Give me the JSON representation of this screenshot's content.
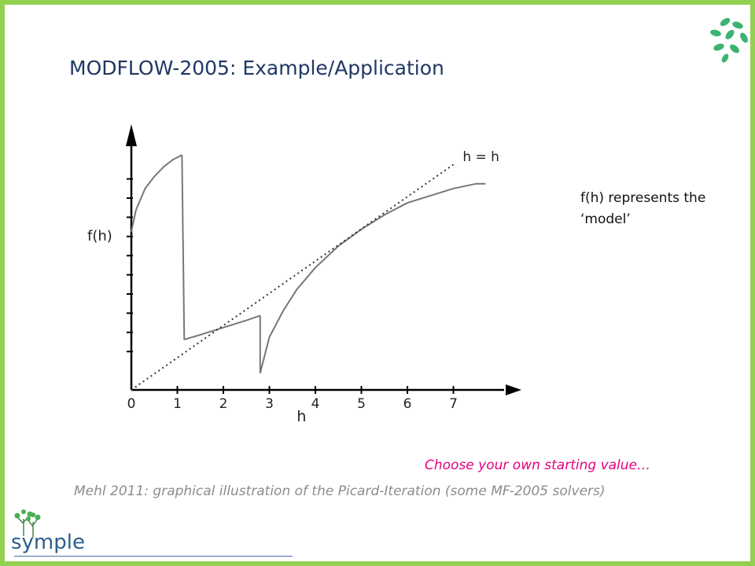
{
  "slide": {
    "title": "MODFLOW-2005: Example/Application",
    "side_note_lines": [
      "f(h) represents the",
      "‘model’"
    ],
    "hint": "Choose your own starting value…",
    "caption": "Mehl 2011: graphical illustration of the Picard-Iteration (some MF-2005 solvers)",
    "border_color": "#92d050",
    "title_color": "#1f3864",
    "hint_color": "#e6007e"
  },
  "logos": {
    "top_right": "leaf-cluster-icon",
    "bottom_left_text": "symple"
  },
  "chart_data": {
    "type": "line",
    "xlabel": "h",
    "ylabel": "f(h)",
    "xticks": [
      0,
      1,
      2,
      3,
      4,
      5,
      6,
      7
    ],
    "xlim": [
      0,
      8
    ],
    "ylim": [
      0,
      10
    ],
    "grid": false,
    "series": [
      {
        "name": "f(h)",
        "style": "solid",
        "segments": [
          {
            "x": [
              0,
              0.1,
              0.3,
              0.5,
              0.7,
              0.9,
              1.1,
              1.1
            ],
            "y": [
              6.6,
              7.5,
              8.4,
              8.9,
              9.3,
              9.6,
              9.8,
              9.8
            ]
          },
          {
            "x": [
              1.1,
              1.15
            ],
            "y": [
              9.8,
              2.1
            ]
          },
          {
            "x": [
              1.15,
              1.5,
              2.0,
              2.5,
              2.8
            ],
            "y": [
              2.1,
              2.3,
              2.6,
              2.9,
              3.1
            ]
          },
          {
            "x": [
              2.8,
              2.8
            ],
            "y": [
              3.1,
              0.7
            ]
          },
          {
            "x": [
              2.8,
              3.0,
              3.3,
              3.6,
              4.0,
              4.5,
              5.0,
              5.5,
              6.0,
              6.5,
              7.0,
              7.5,
              7.7
            ],
            "y": [
              0.7,
              2.2,
              3.3,
              4.2,
              5.1,
              6.0,
              6.7,
              7.3,
              7.8,
              8.1,
              8.4,
              8.6,
              8.6
            ]
          }
        ]
      },
      {
        "name": "h = h",
        "style": "dotted",
        "x": [
          0,
          7
        ],
        "y": [
          0,
          9.4
        ]
      }
    ],
    "annotations": [
      {
        "text": "h = h",
        "x": 7.1,
        "y": 9.6
      }
    ]
  }
}
